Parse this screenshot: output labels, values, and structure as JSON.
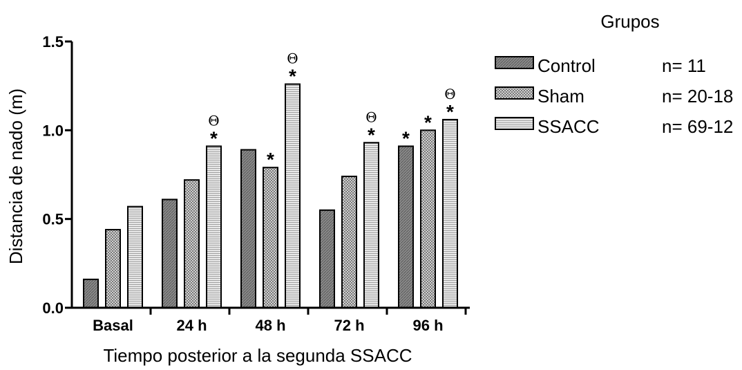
{
  "chart_data": {
    "type": "bar",
    "ylabel": "Distancia de nado (m)",
    "xlabel": "Tiempo posterior a la segunda SSACC",
    "ylim": [
      0,
      1.5
    ],
    "yticks": [
      "0.0",
      "0.5",
      "1.0",
      "1.5"
    ],
    "ytick_values": [
      0,
      0.5,
      1.0,
      1.5
    ],
    "categories": [
      "Basal",
      "24 h",
      "48 h",
      "72 h",
      "96 h"
    ],
    "legend": {
      "title": "Grupos",
      "placement": "right",
      "entries": [
        {
          "label": "Control",
          "n": "n= 11"
        },
        {
          "label": "Sham",
          "n": "n= 20-18"
        },
        {
          "label": "SSACC",
          "n": "n= 69-12"
        }
      ]
    },
    "series": [
      {
        "name": "Control",
        "values": [
          0.16,
          0.61,
          0.89,
          0.55,
          0.91
        ],
        "color": "#808080",
        "pattern": "hatch-dark"
      },
      {
        "name": "Sham",
        "values": [
          0.44,
          0.72,
          0.79,
          0.74,
          1.0
        ],
        "color": "#b8b8b8",
        "pattern": "check"
      },
      {
        "name": "SSACC",
        "values": [
          0.57,
          0.91,
          1.26,
          0.93,
          1.06
        ],
        "color": "#d6d6d6",
        "pattern": "lines-light"
      }
    ],
    "annotations": [
      {
        "category": "24 h",
        "series": "SSACC",
        "star": "*",
        "theta": "Θ"
      },
      {
        "category": "48 h",
        "series": "Sham",
        "star": "*",
        "theta": ""
      },
      {
        "category": "48 h",
        "series": "SSACC",
        "star": "*",
        "theta": "Θ"
      },
      {
        "category": "72 h",
        "series": "SSACC",
        "star": "*",
        "theta": "Θ"
      },
      {
        "category": "96 h",
        "series": "Control",
        "star": "*",
        "theta": ""
      },
      {
        "category": "96 h",
        "series": "Sham",
        "star": "*",
        "theta": ""
      },
      {
        "category": "96 h",
        "series": "SSACC",
        "star": "*",
        "theta": "Θ"
      }
    ]
  }
}
